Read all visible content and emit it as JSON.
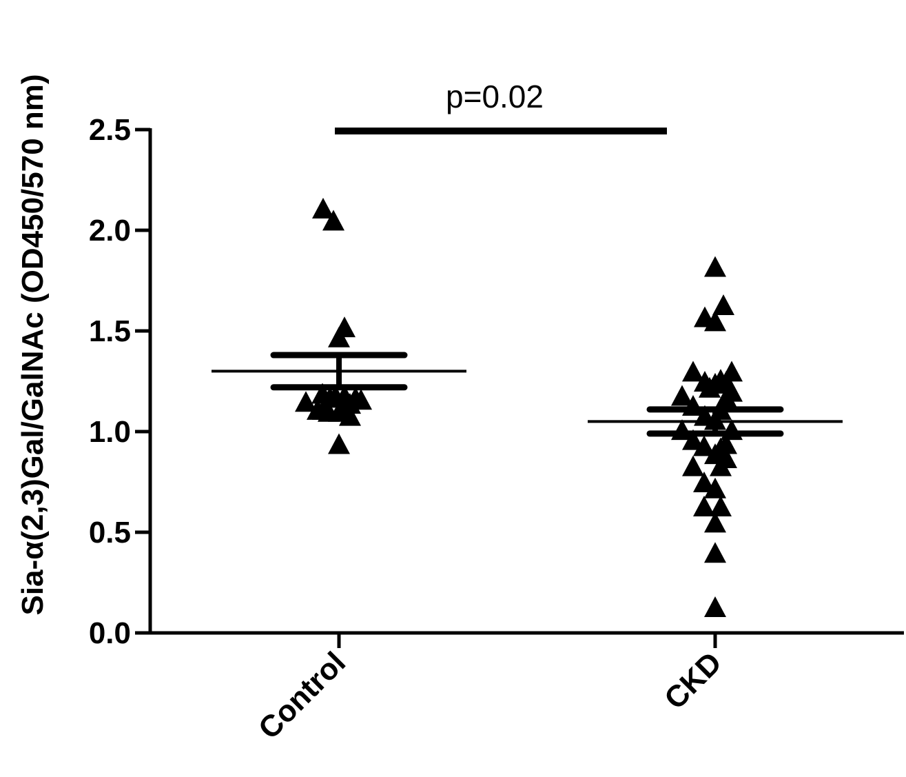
{
  "chart_data": {
    "type": "scatter",
    "title": "",
    "xlabel": "",
    "ylabel": "Sia-α(2,3)Gal/GalNAc (OD450/570 nm)",
    "ylim": [
      0,
      2.5
    ],
    "yticks": [
      "0.0",
      "0.5",
      "1.0",
      "1.5",
      "2.0",
      "2.5"
    ],
    "grid": false,
    "categories": [
      "Control",
      "CKD"
    ],
    "annotation": "p=0.02",
    "marker_color": "#000000",
    "series": [
      {
        "category": "Control",
        "mean": 1.3,
        "sem_upper": 1.38,
        "sem_lower": 1.22,
        "points": [
          {
            "dx": -0.23,
            "y": 2.11
          },
          {
            "dx": -0.08,
            "y": 2.05
          },
          {
            "dx": 0.08,
            "y": 1.52
          },
          {
            "dx": 0.0,
            "y": 1.47
          },
          {
            "dx": -0.48,
            "y": 1.15
          },
          {
            "dx": -0.31,
            "y": 1.11
          },
          {
            "dx": -0.23,
            "y": 1.11
          },
          {
            "dx": -0.15,
            "y": 1.1
          },
          {
            "dx": 0.0,
            "y": 1.1
          },
          {
            "dx": 0.07,
            "y": 1.12
          },
          {
            "dx": 0.16,
            "y": 1.14
          },
          {
            "dx": 0.32,
            "y": 1.16
          },
          {
            "dx": 0.24,
            "y": 1.17
          },
          {
            "dx": -0.13,
            "y": 1.17
          },
          {
            "dx": -0.24,
            "y": 1.19
          },
          {
            "dx": 0.16,
            "y": 1.08
          },
          {
            "dx": 0.08,
            "y": 1.18
          },
          {
            "dx": -0.05,
            "y": 1.18
          },
          {
            "dx": 0.0,
            "y": 0.94
          }
        ]
      },
      {
        "category": "CKD",
        "mean": 1.05,
        "sem_upper": 1.11,
        "sem_lower": 0.99,
        "points": [
          {
            "dx": 0.0,
            "y": 1.82
          },
          {
            "dx": 0.12,
            "y": 1.63
          },
          {
            "dx": -0.15,
            "y": 1.57
          },
          {
            "dx": 0.0,
            "y": 1.55
          },
          {
            "dx": -0.32,
            "y": 1.3
          },
          {
            "dx": -0.15,
            "y": 1.25
          },
          {
            "dx": -0.08,
            "y": 1.22
          },
          {
            "dx": 0.0,
            "y": 1.24
          },
          {
            "dx": 0.08,
            "y": 1.26
          },
          {
            "dx": 0.16,
            "y": 1.25
          },
          {
            "dx": 0.24,
            "y": 1.3
          },
          {
            "dx": -0.48,
            "y": 1.18
          },
          {
            "dx": 0.24,
            "y": 1.2
          },
          {
            "dx": 0.16,
            "y": 1.17
          },
          {
            "dx": -0.32,
            "y": 1.13
          },
          {
            "dx": -0.15,
            "y": 1.08
          },
          {
            "dx": 0.08,
            "y": 1.11
          },
          {
            "dx": 0.0,
            "y": 1.06
          },
          {
            "dx": -0.48,
            "y": 1.01
          },
          {
            "dx": 0.24,
            "y": 1.01
          },
          {
            "dx": -0.32,
            "y": 0.96
          },
          {
            "dx": -0.16,
            "y": 0.93
          },
          {
            "dx": 0.0,
            "y": 0.89
          },
          {
            "dx": 0.08,
            "y": 0.92
          },
          {
            "dx": 0.16,
            "y": 0.94
          },
          {
            "dx": 0.16,
            "y": 0.87
          },
          {
            "dx": 0.08,
            "y": 0.83
          },
          {
            "dx": -0.32,
            "y": 0.83
          },
          {
            "dx": -0.16,
            "y": 0.75
          },
          {
            "dx": 0.0,
            "y": 0.72
          },
          {
            "dx": -0.16,
            "y": 0.63
          },
          {
            "dx": 0.08,
            "y": 0.63
          },
          {
            "dx": 0.0,
            "y": 0.55
          },
          {
            "dx": 0.0,
            "y": 0.4
          },
          {
            "dx": 0.0,
            "y": 0.13
          }
        ]
      }
    ]
  }
}
